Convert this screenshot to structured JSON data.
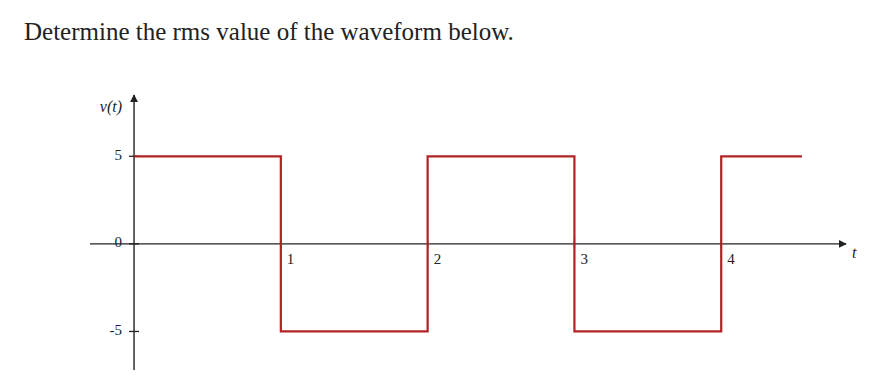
{
  "chart_data": {
    "type": "line",
    "title": "Determine the rms value of the waveform below.",
    "x_label": "t",
    "y_label": "v(t)",
    "x": [
      0,
      1,
      1,
      2,
      2,
      3,
      3,
      4,
      4,
      4.55
    ],
    "values": [
      5,
      5,
      -5,
      -5,
      5,
      5,
      -5,
      -5,
      5,
      5
    ],
    "color": "#b22222",
    "xlim": [
      -0.3,
      4.85
    ],
    "ylim": [
      -7.2,
      8.5
    ],
    "xticks": [
      1,
      2,
      3,
      4
    ],
    "yticks": [
      -5,
      0,
      5
    ],
    "grid": false
  }
}
